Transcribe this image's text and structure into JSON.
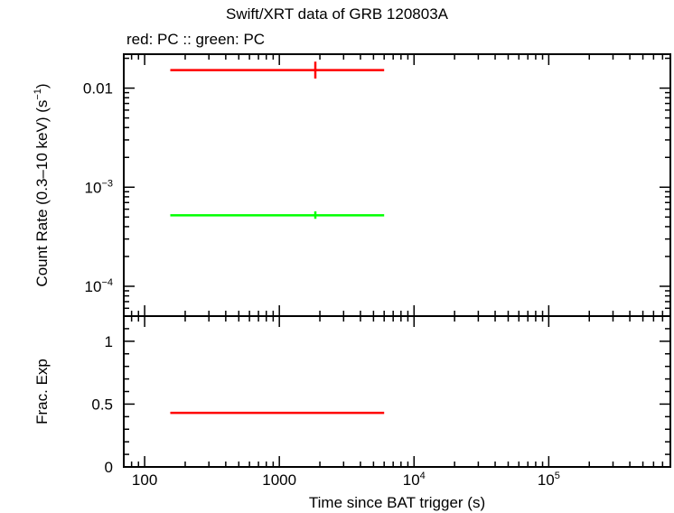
{
  "chart_data": {
    "title": "Swift/XRT data of GRB 120803A",
    "subtitle": "red: PC  :: green: PC",
    "xlabel": "Time since BAT trigger (s)",
    "x_scale": "log",
    "xlim": [
      70,
      800000
    ],
    "x_ticks": [
      {
        "value": 100,
        "label": "100"
      },
      {
        "value": 1000,
        "label": "1000"
      },
      {
        "value": 10000,
        "label": "10",
        "sup": "4"
      },
      {
        "value": 100000,
        "label": "10",
        "sup": "5"
      }
    ],
    "panels": [
      {
        "name": "count-rate",
        "type": "scatter",
        "ylabel": "Count Rate (0.3–10 keV) (s",
        "ylabel_sup": "−1",
        "ylabel_end": ")",
        "y_scale": "log",
        "ylim": [
          5e-05,
          0.022
        ],
        "y_ticks": [
          {
            "value": 0.01,
            "label": "0.01",
            "sup": ""
          },
          {
            "value": 0.001,
            "label": "10",
            "sup": "−3"
          },
          {
            "value": 0.0001,
            "label": "10",
            "sup": "−4"
          }
        ],
        "series": [
          {
            "color": "#ff0000",
            "points": [
              {
                "x": 1850,
                "xlo": 155,
                "xhi": 6000,
                "y": 0.0152,
                "ylo": 0.0125,
                "yhi": 0.0185
              }
            ]
          },
          {
            "color": "#00ff00",
            "points": [
              {
                "x": 1850,
                "xlo": 155,
                "xhi": 6000,
                "y": 0.00052,
                "ylo": 0.00048,
                "yhi": 0.00057
              }
            ]
          }
        ]
      },
      {
        "name": "frac-exp",
        "type": "scatter",
        "ylabel": "Frac. Exp",
        "y_scale": "linear",
        "ylim": [
          0,
          1.2
        ],
        "y_ticks": [
          {
            "value": 0,
            "label": "0"
          },
          {
            "value": 0.5,
            "label": "0.5"
          },
          {
            "value": 1,
            "label": "1"
          }
        ],
        "series": [
          {
            "color": "#ff0000",
            "points": [
              {
                "xlo": 155,
                "xhi": 6000,
                "y": 0.43
              }
            ]
          }
        ]
      }
    ]
  }
}
